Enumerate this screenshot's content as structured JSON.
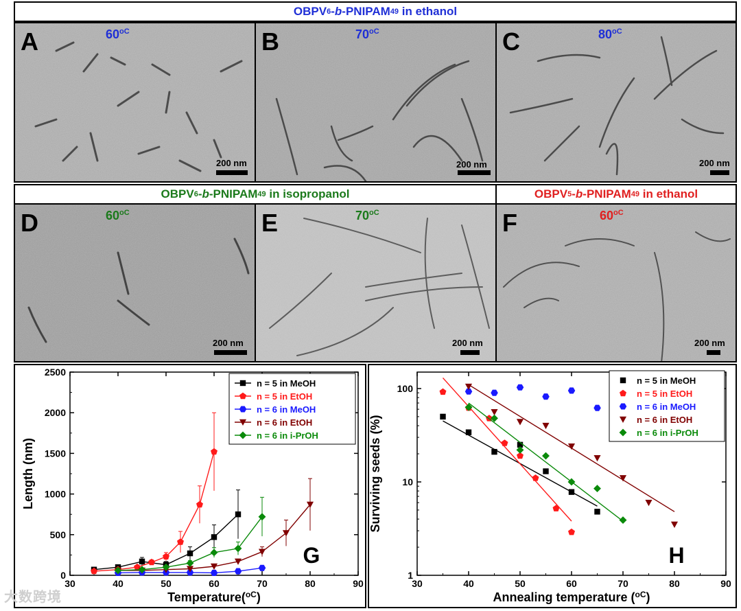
{
  "row1": {
    "title_prefix": "OBPV",
    "title_n": "6",
    "title_mid": "-",
    "title_b": "b",
    "title_rest": "-PNIPAM",
    "title_m": "49",
    "title_tail": " in ethanol",
    "color": "#1f2fd6",
    "panels": [
      {
        "letter": "A",
        "temp": "60",
        "unit": "oC",
        "scale": "200 nm"
      },
      {
        "letter": "B",
        "temp": "70",
        "unit": "oC",
        "scale": "200 nm"
      },
      {
        "letter": "C",
        "temp": "80",
        "unit": "oC",
        "scale": "200 nm"
      }
    ]
  },
  "row2_left": {
    "title_prefix": "OBPV",
    "title_n": "6",
    "title_mid": "-",
    "title_b": "b",
    "title_rest": "-PNIPAM",
    "title_m": "49",
    "title_tail": " in isopropanol",
    "color": "#1b7a1b",
    "panels": [
      {
        "letter": "D",
        "temp": "60",
        "unit": "oC",
        "scale": "200 nm"
      },
      {
        "letter": "E",
        "temp": "70",
        "unit": "oC",
        "scale": "200 nm"
      }
    ]
  },
  "row2_right": {
    "title_prefix": "OBPV",
    "title_n": "5",
    "title_mid": "-",
    "title_b": "b",
    "title_rest": "-PNIPAM",
    "title_m": "49",
    "title_tail": " in ethanol",
    "color": "#e02020",
    "panels": [
      {
        "letter": "F",
        "temp": "60",
        "unit": "oC",
        "scale": "200 nm"
      }
    ]
  },
  "chart_data": [
    {
      "type": "line",
      "panel_letter": "G",
      "xlabel": "Temperature(",
      "xlabel_unit": "oC",
      "xlabel_close": ")",
      "ylabel": "Length (nm)",
      "xlim": [
        30,
        90
      ],
      "ylim": [
        0,
        2500
      ],
      "xticks": [
        "30",
        "40",
        "50",
        "60",
        "70",
        "80",
        "90"
      ],
      "yticks": [
        "0",
        "500",
        "1000",
        "1500",
        "2000",
        "2500"
      ],
      "legend": [
        "n = 5 in MeOH",
        "n = 5 in EtOH",
        "n = 6 in MeOH",
        "n = 6 in EtOH",
        "n = 6 in i-PrOH"
      ],
      "legend_placement": "top-right",
      "series": [
        {
          "name": "n = 5 in MeOH",
          "color": "#000000",
          "marker": "square",
          "x": [
            35,
            40,
            45,
            50,
            55,
            60,
            65
          ],
          "y": [
            70,
            100,
            170,
            130,
            270,
            470,
            750
          ],
          "err": [
            20,
            30,
            50,
            40,
            80,
            150,
            300
          ]
        },
        {
          "name": "n = 5 in EtOH",
          "color": "#ff1a1a",
          "marker": "pentagon",
          "x": [
            35,
            40,
            44,
            47,
            50,
            53,
            57,
            60
          ],
          "y": [
            50,
            70,
            100,
            160,
            230,
            410,
            870,
            1520
          ],
          "err": [
            10,
            15,
            20,
            30,
            50,
            130,
            230,
            480
          ]
        },
        {
          "name": "n = 6 in MeOH",
          "color": "#1a1aff",
          "marker": "hexagon",
          "x": [
            40,
            45,
            50,
            55,
            60,
            65,
            70
          ],
          "y": [
            30,
            35,
            35,
            35,
            30,
            50,
            90
          ],
          "err": [
            5,
            5,
            5,
            5,
            5,
            8,
            15
          ]
        },
        {
          "name": "n = 6 in EtOH",
          "color": "#800000",
          "marker": "tri-down",
          "x": [
            40,
            45,
            50,
            55,
            60,
            65,
            70,
            75,
            80
          ],
          "y": [
            60,
            60,
            70,
            80,
            110,
            170,
            290,
            520,
            870
          ],
          "err": [
            10,
            10,
            10,
            15,
            20,
            30,
            60,
            160,
            320
          ]
        },
        {
          "name": "n = 6 in i-PrOH",
          "color": "#0a8a0a",
          "marker": "diamond",
          "x": [
            40,
            45,
            50,
            55,
            60,
            65,
            70
          ],
          "y": [
            60,
            70,
            100,
            150,
            280,
            330,
            720
          ],
          "err": [
            10,
            15,
            20,
            30,
            60,
            80,
            240
          ]
        }
      ]
    },
    {
      "type": "scatter",
      "panel_letter": "H",
      "xlabel": "Annealing temperature (",
      "xlabel_unit": "oC",
      "xlabel_close": ")",
      "ylabel": "Surviving seeds (%)",
      "yscale": "log",
      "xlim": [
        30,
        90
      ],
      "ylim": [
        1,
        150
      ],
      "xticks": [
        "30",
        "40",
        "50",
        "60",
        "70",
        "80",
        "90"
      ],
      "yticks": [
        "1",
        "10",
        "100"
      ],
      "legend": [
        "n = 5 in MeOH",
        "n = 5 in EtOH",
        "n = 6 in MeOH",
        "n = 6 in EtOH",
        "n = 6 in i-PrOH"
      ],
      "legend_placement": "top-right",
      "series": [
        {
          "name": "n = 5 in MeOH",
          "color": "#000000",
          "marker": "square",
          "x": [
            35,
            40,
            45,
            50,
            55,
            60,
            65
          ],
          "y": [
            50,
            34,
            21,
            25,
            13,
            7.8,
            4.8
          ],
          "fit": [
            [
              35,
              45
            ],
            [
              65,
              5.5
            ]
          ]
        },
        {
          "name": "n = 5 in EtOH",
          "color": "#ff1a1a",
          "marker": "pentagon",
          "x": [
            35,
            40,
            44,
            47,
            50,
            53,
            57,
            60
          ],
          "y": [
            92,
            62,
            48,
            26,
            19,
            11,
            5.2,
            2.9
          ],
          "fit": [
            [
              35,
              130
            ],
            [
              60,
              3.8
            ]
          ]
        },
        {
          "name": "n = 6 in MeOH",
          "color": "#1a1aff",
          "marker": "hexagon",
          "x": [
            40,
            45,
            50,
            55,
            60,
            65
          ],
          "y": [
            93,
            90,
            103,
            82,
            95,
            62
          ]
        },
        {
          "name": "n = 6 in EtOH",
          "color": "#800000",
          "marker": "tri-down",
          "x": [
            40,
            45,
            50,
            55,
            60,
            65,
            70,
            75,
            80
          ],
          "y": [
            105,
            56,
            44,
            40,
            24,
            18,
            11,
            6,
            3.5
          ],
          "fit": [
            [
              40,
              110
            ],
            [
              80,
              4.8
            ]
          ]
        },
        {
          "name": "n = 6 in i-PrOH",
          "color": "#0a8a0a",
          "marker": "diamond",
          "x": [
            40,
            45,
            50,
            55,
            60,
            65,
            70
          ],
          "y": [
            63,
            48,
            22,
            19,
            10,
            8.5,
            3.9
          ],
          "fit": [
            [
              40,
              70
            ],
            [
              70,
              3.8
            ]
          ]
        }
      ]
    }
  ],
  "watermark": "大数跨境"
}
